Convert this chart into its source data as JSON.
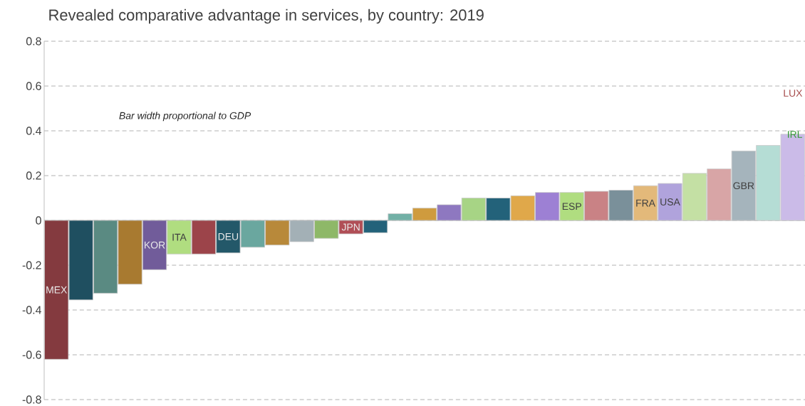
{
  "chart_data": {
    "type": "bar",
    "title": "Revealed comparative advantage in services, by country: 2019",
    "categories": [
      "MEX",
      null,
      null,
      null,
      "KOR",
      "ITA",
      null,
      "DEU",
      null,
      null,
      null,
      null,
      "JPN",
      null,
      null,
      null,
      null,
      null,
      null,
      null,
      null,
      "ESP",
      null,
      null,
      "FRA",
      "USA",
      null,
      null,
      "GBR",
      null,
      null
    ],
    "values": [
      -0.62,
      -0.355,
      -0.325,
      -0.285,
      -0.22,
      -0.15,
      -0.15,
      -0.145,
      -0.12,
      -0.11,
      -0.095,
      -0.08,
      -0.06,
      -0.055,
      0.03,
      0.055,
      0.07,
      0.1,
      0.1,
      0.11,
      0.125,
      0.125,
      0.13,
      0.135,
      0.155,
      0.165,
      0.21,
      0.23,
      0.31,
      0.335,
      0.385
    ],
    "colors": [
      "#843a3f",
      "#1f4f60",
      "#5a8a82",
      "#a87a30",
      "#715c9a",
      "#b0dd80",
      "#9c444a",
      "#235869",
      "#6aa79f",
      "#b8893a",
      "#a3b0b6",
      "#8eb868",
      "#b04e56",
      "#23627a",
      "#72b0a6",
      "#cf9b3e",
      "#8e78c0",
      "#a7d485",
      "#23627a",
      "#e0a84a",
      "#9d80d4",
      "#b0dd80",
      "#c98285",
      "#7a909a",
      "#e3b97a",
      "#b0a3dc",
      "#c4e0a4",
      "#d8a5a6",
      "#a5b4bc",
      "#b5ddd5",
      "#cbbbe8"
    ],
    "ylim": [
      -0.8,
      0.8
    ],
    "yticks": [
      -0.8,
      -0.6,
      -0.4,
      -0.2,
      0,
      0.2,
      0.4,
      0.6,
      0.8
    ],
    "grid": "y",
    "annotations": [
      "Bar width proportional to GDP",
      "LUX",
      "IRL"
    ]
  }
}
